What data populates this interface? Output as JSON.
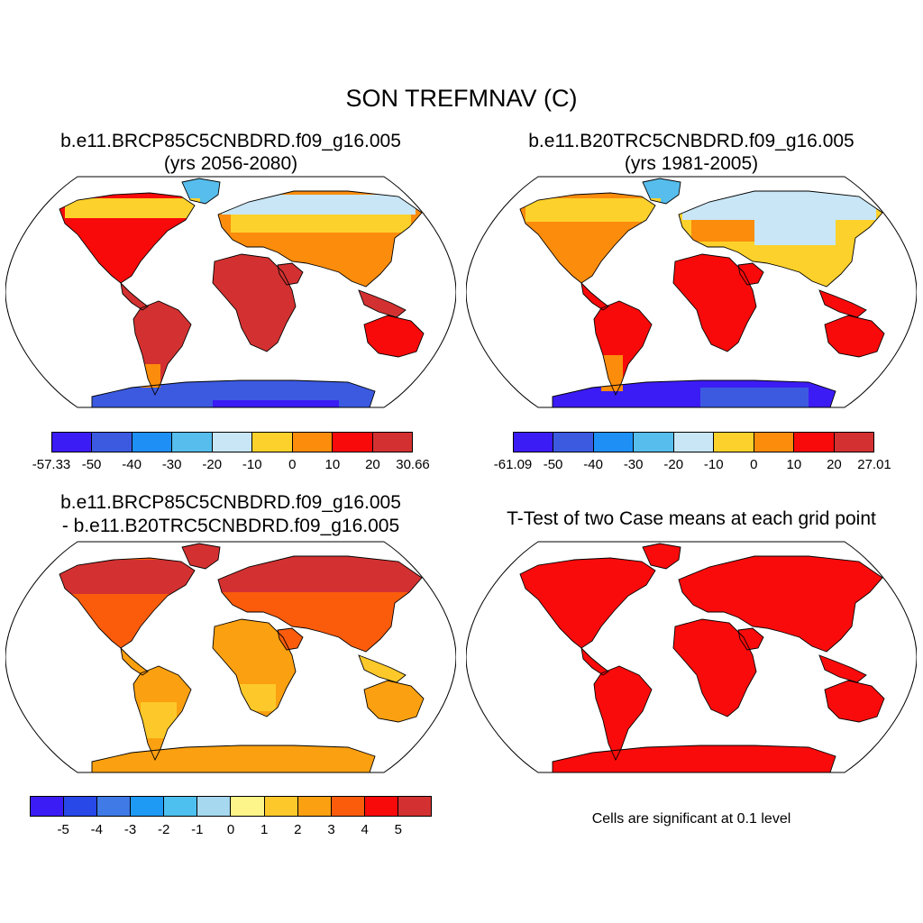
{
  "title": "SON TREFMNAV (C)",
  "panels": [
    {
      "id": "case1",
      "title_lines": [
        "b.e11.BRCP85C5CNBDRD.f09_g16.005",
        "(yrs 2056-2080)"
      ],
      "colorbar": {
        "colors": [
          "#3b1cf4",
          "#3c5ae0",
          "#1e90f5",
          "#56bdec",
          "#c8e6f6",
          "#fdd12b",
          "#fb8c0c",
          "#f80a0a",
          "#d33131"
        ],
        "tick_labels": [
          "-57.33",
          "-50",
          "-40",
          "-30",
          "-20",
          "-10",
          "0",
          "10",
          "20",
          "30.66"
        ]
      }
    },
    {
      "id": "case2",
      "title_lines": [
        "b.e11.B20TRC5CNBDRD.f09_g16.005",
        "(yrs 1981-2005)"
      ],
      "colorbar": {
        "colors": [
          "#3b1cf4",
          "#3c5ae0",
          "#1e90f5",
          "#56bdec",
          "#c8e6f6",
          "#fdd12b",
          "#fb8c0c",
          "#f80a0a",
          "#d33131"
        ],
        "tick_labels": [
          "-61.09",
          "-50",
          "-40",
          "-30",
          "-20",
          "-10",
          "0",
          "10",
          "20",
          "27.01"
        ]
      }
    },
    {
      "id": "difference",
      "title_lines": [
        "b.e11.BRCP85C5CNBDRD.f09_g16.005",
        "- b.e11.B20TRC5CNBDRD.f09_g16.005"
      ],
      "colorbar": {
        "colors": [
          "#3b1cf4",
          "#2848e8",
          "#3f7ae6",
          "#1e9af5",
          "#4ec0ef",
          "#a6d8ef",
          "#fdf58a",
          "#fdc92a",
          "#fba010",
          "#fb5c0c",
          "#f80a0a",
          "#d33131"
        ],
        "tick_labels": [
          "-5",
          "-4",
          "-3",
          "-2",
          "-1",
          "0",
          "1",
          "2",
          "3",
          "4",
          "5"
        ]
      }
    },
    {
      "id": "ttest",
      "title_lines": [
        "T-Test of two Case means at each grid point"
      ],
      "note": "Cells are significant at 0.1 level",
      "fill_color": "#fa0b0b"
    }
  ]
}
